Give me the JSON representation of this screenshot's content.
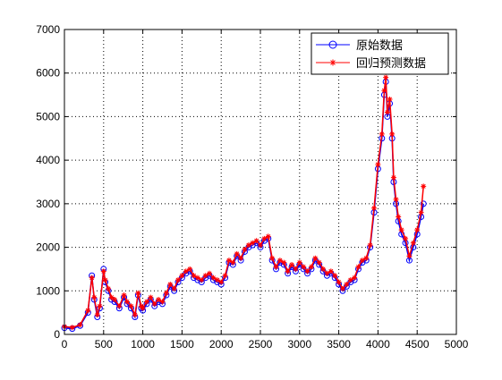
{
  "chart_data": {
    "type": "line",
    "title": "",
    "xlabel": "",
    "ylabel": "",
    "xlim": [
      0,
      5000
    ],
    "ylim": [
      0,
      7000
    ],
    "xticks": [
      "0",
      "500",
      "1000",
      "1500",
      "2000",
      "2500",
      "3000",
      "3500",
      "4000",
      "4500",
      "5000"
    ],
    "yticks": [
      "0",
      "1000",
      "2000",
      "3000",
      "4000",
      "5000",
      "6000",
      "7000"
    ],
    "grid": true,
    "legend_position": "top-right",
    "series": [
      {
        "name": "原始数据",
        "color": "#0000ff",
        "marker": "circle",
        "x": [
          0,
          100,
          200,
          300,
          350,
          380,
          420,
          450,
          500,
          520,
          560,
          600,
          640,
          700,
          760,
          800,
          850,
          900,
          940,
          980,
          1000,
          1050,
          1100,
          1150,
          1200,
          1250,
          1300,
          1350,
          1400,
          1450,
          1500,
          1550,
          1600,
          1650,
          1700,
          1750,
          1800,
          1850,
          1900,
          1950,
          2000,
          2050,
          2100,
          2150,
          2200,
          2250,
          2300,
          2350,
          2400,
          2450,
          2500,
          2550,
          2600,
          2650,
          2700,
          2750,
          2800,
          2850,
          2900,
          2950,
          3000,
          3050,
          3100,
          3150,
          3200,
          3250,
          3300,
          3350,
          3400,
          3450,
          3500,
          3550,
          3600,
          3650,
          3700,
          3750,
          3800,
          3850,
          3900,
          3950,
          4000,
          4050,
          4080,
          4100,
          4120,
          4150,
          4180,
          4200,
          4230,
          4260,
          4300,
          4350,
          4400,
          4450,
          4500,
          4550,
          4580
        ],
        "values": [
          150,
          130,
          200,
          500,
          1350,
          800,
          400,
          600,
          1500,
          1200,
          1000,
          800,
          750,
          600,
          850,
          700,
          600,
          400,
          900,
          600,
          550,
          700,
          800,
          650,
          750,
          700,
          900,
          1100,
          1000,
          1200,
          1300,
          1400,
          1450,
          1300,
          1250,
          1200,
          1300,
          1350,
          1250,
          1200,
          1150,
          1300,
          1650,
          1600,
          1800,
          1700,
          1900,
          2000,
          2050,
          2100,
          2000,
          2150,
          2200,
          1700,
          1500,
          1650,
          1600,
          1400,
          1550,
          1450,
          1600,
          1500,
          1400,
          1500,
          1700,
          1600,
          1450,
          1350,
          1400,
          1300,
          1150,
          1000,
          1100,
          1200,
          1250,
          1500,
          1650,
          1700,
          2000,
          2800,
          3800,
          4500,
          5500,
          5800,
          5000,
          5300,
          4500,
          3500,
          3000,
          2600,
          2300,
          2100,
          1700,
          2000,
          2300,
          2700,
          3000
        ]
      },
      {
        "name": "回归预测数据",
        "color": "#ff0000",
        "marker": "star",
        "x": [
          0,
          100,
          200,
          300,
          350,
          380,
          420,
          450,
          500,
          520,
          560,
          600,
          640,
          700,
          760,
          800,
          850,
          900,
          940,
          980,
          1000,
          1050,
          1100,
          1150,
          1200,
          1250,
          1300,
          1350,
          1400,
          1450,
          1500,
          1550,
          1600,
          1650,
          1700,
          1750,
          1800,
          1850,
          1900,
          1950,
          2000,
          2050,
          2100,
          2150,
          2200,
          2250,
          2300,
          2350,
          2400,
          2450,
          2500,
          2550,
          2600,
          2650,
          2700,
          2750,
          2800,
          2850,
          2900,
          2950,
          3000,
          3050,
          3100,
          3150,
          3200,
          3250,
          3300,
          3350,
          3400,
          3450,
          3500,
          3550,
          3600,
          3650,
          3700,
          3750,
          3800,
          3850,
          3900,
          3950,
          4000,
          4050,
          4080,
          4100,
          4120,
          4150,
          4180,
          4200,
          4230,
          4260,
          4300,
          4350,
          4400,
          4450,
          4500,
          4550,
          4580
        ],
        "values": [
          180,
          160,
          220,
          550,
          1300,
          850,
          450,
          650,
          1450,
          1250,
          1050,
          850,
          800,
          650,
          900,
          750,
          650,
          450,
          950,
          650,
          600,
          750,
          850,
          700,
          800,
          750,
          950,
          1150,
          1050,
          1250,
          1350,
          1450,
          1500,
          1350,
          1300,
          1250,
          1350,
          1400,
          1300,
          1250,
          1200,
          1350,
          1700,
          1650,
          1850,
          1750,
          1950,
          2050,
          2100,
          2150,
          2050,
          2200,
          2250,
          1750,
          1550,
          1700,
          1650,
          1450,
          1600,
          1500,
          1650,
          1550,
          1450,
          1550,
          1750,
          1650,
          1500,
          1400,
          1450,
          1350,
          1200,
          1050,
          1150,
          1250,
          1300,
          1550,
          1700,
          1750,
          2050,
          2900,
          3900,
          4600,
          5600,
          5900,
          5100,
          5400,
          4600,
          3600,
          3100,
          2700,
          2400,
          2200,
          1800,
          2100,
          2400,
          2800,
          3400
        ]
      }
    ]
  }
}
